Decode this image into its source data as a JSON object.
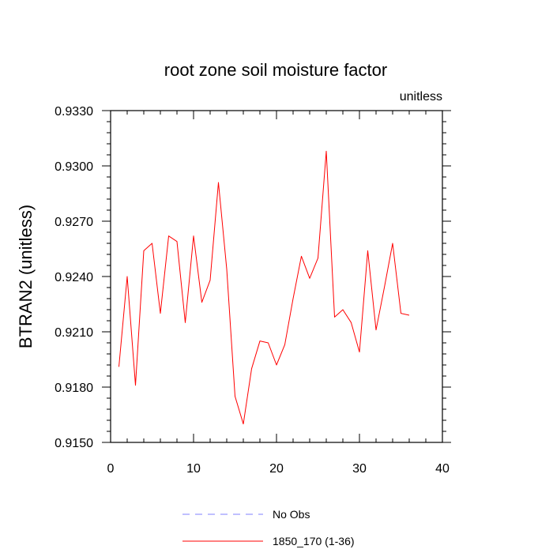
{
  "chart_data": {
    "type": "line",
    "title": "root zone soil moisture factor",
    "units_label": "unitless",
    "xlabel": "",
    "ylabel": "BTRAN2  (unitless)",
    "xlim": [
      0,
      40
    ],
    "ylim": [
      0.915,
      0.933
    ],
    "x_ticks": [
      0,
      10,
      20,
      30,
      40
    ],
    "y_ticks": [
      "0.9150",
      "0.9180",
      "0.9210",
      "0.9240",
      "0.9270",
      "0.9300",
      "0.9330"
    ],
    "series": [
      {
        "name": "1850_170 (1-36)",
        "color": "#ff0000",
        "style": "solid",
        "x": [
          1,
          2,
          3,
          4,
          5,
          6,
          7,
          8,
          9,
          10,
          11,
          12,
          13,
          14,
          15,
          16,
          17,
          18,
          19,
          20,
          21,
          22,
          23,
          24,
          25,
          26,
          27,
          28,
          29,
          30,
          31,
          32,
          33,
          34,
          35,
          36
        ],
        "values": [
          0.9191,
          0.924,
          0.9181,
          0.9254,
          0.9258,
          0.922,
          0.9262,
          0.9259,
          0.9215,
          0.9262,
          0.9226,
          0.9238,
          0.9291,
          0.9244,
          0.9175,
          0.916,
          0.919,
          0.9205,
          0.9204,
          0.9192,
          0.9203,
          0.9228,
          0.9251,
          0.9239,
          0.925,
          0.9308,
          0.9218,
          0.9222,
          0.9215,
          0.9199,
          0.9254,
          0.9211,
          0.9234,
          0.9258,
          0.922,
          0.9219
        ]
      }
    ],
    "legend": [
      {
        "label": "No Obs",
        "color": "#8080ff",
        "style": "dashed"
      },
      {
        "label": "1850_170 (1-36)",
        "color": "#ff0000",
        "style": "solid"
      }
    ]
  }
}
